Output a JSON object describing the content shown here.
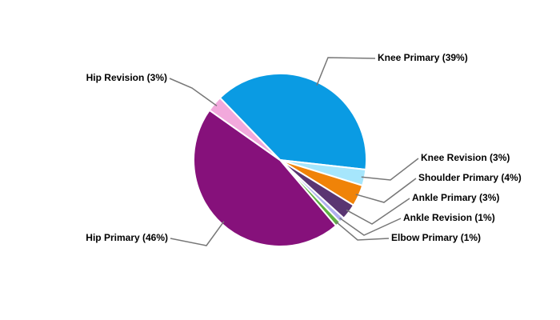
{
  "chart_data": {
    "type": "pie",
    "categories": [
      "Knee Primary",
      "Knee Revision",
      "Shoulder Primary",
      "Ankle Primary",
      "Ankle Revision",
      "Elbow Primary",
      "Hip Primary",
      "Hip Revision"
    ],
    "values": [
      39,
      3,
      4,
      3,
      1,
      1,
      46,
      3
    ],
    "value_labels": [
      "Knee Primary (39%)",
      "Knee Revision (3%)",
      "Shoulder Primary (4%)",
      "Ankle Primary (3%)",
      "Ankle Revision (1%)",
      "Elbow Primary (1%)",
      "Hip Primary (46%)",
      "Hip Revision (3%)"
    ],
    "colors": [
      "#0a9be3",
      "#a6e6fc",
      "#f08308",
      "#5a3572",
      "#b0b0ee",
      "#5fb043",
      "#86117b",
      "#f2a9dc"
    ]
  }
}
